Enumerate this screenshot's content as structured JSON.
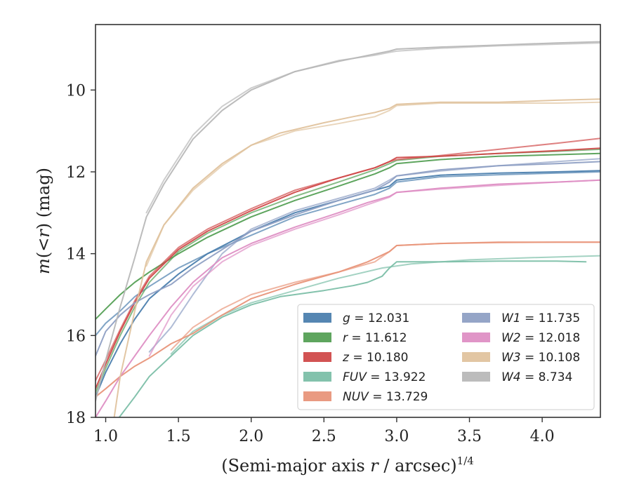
{
  "chart_data": {
    "type": "line",
    "xlabel_text": "(Semi-major axis ",
    "xlabel_var": "r",
    "xlabel_text2": " / arcsec)",
    "xlabel_sup": "1/4",
    "ylabel_m": "m",
    "ylabel_mid": "(<",
    "ylabel_r": "r",
    "ylabel_end": ") (mag)",
    "xlim": [
      0.93,
      4.4
    ],
    "ylim": [
      18,
      8.4
    ],
    "y_inverted": true,
    "x_ticks": [
      1.0,
      1.5,
      2.0,
      2.5,
      3.0,
      3.5,
      4.0
    ],
    "x_tick_labels": [
      "1.0",
      "1.5",
      "2.0",
      "2.5",
      "3.0",
      "3.5",
      "4.0"
    ],
    "y_ticks": [
      10,
      12,
      14,
      16,
      18
    ],
    "y_tick_labels": [
      "10",
      "12",
      "14",
      "16",
      "18"
    ],
    "grid": false,
    "legend_position": "lower-right",
    "legend_columns": 2,
    "series": [
      {
        "band": "g",
        "value": "12.031",
        "color": "#4c7fae",
        "curves": [
          {
            "x": [
              0.93,
              1.0,
              1.1,
              1.2,
              1.3,
              1.5,
              1.7,
              2.0,
              2.3,
              2.6,
              2.85,
              2.95,
              3.0,
              3.3,
              3.7,
              4.1,
              4.4
            ],
            "y": [
              17.5,
              16.9,
              16.2,
              15.6,
              15.1,
              14.5,
              14.0,
              13.45,
              13.0,
              12.7,
              12.45,
              12.35,
              12.2,
              12.08,
              12.03,
              12.0,
              11.97
            ]
          },
          {
            "x": [
              0.93,
              1.0,
              1.1,
              1.2,
              1.3,
              1.5,
              1.7,
              2.0,
              2.3,
              2.6,
              2.85,
              2.95,
              3.0,
              3.3,
              3.7,
              4.1,
              4.4
            ],
            "y": [
              16.0,
              15.7,
              15.4,
              15.05,
              14.8,
              14.35,
              14.0,
              13.55,
              13.1,
              12.8,
              12.55,
              12.4,
              12.25,
              12.12,
              12.07,
              12.03,
              12.0
            ]
          }
        ]
      },
      {
        "band": "r",
        "value": "11.612",
        "color": "#55a055",
        "curves": [
          {
            "x": [
              0.93,
              1.0,
              1.1,
              1.2,
              1.3,
              1.5,
              1.7,
              2.0,
              2.3,
              2.6,
              2.85,
              2.95,
              3.0,
              3.3,
              3.7,
              4.1,
              4.4
            ],
            "y": [
              15.6,
              15.35,
              15.0,
              14.7,
              14.45,
              14.0,
              13.6,
              13.1,
              12.7,
              12.35,
              12.05,
              11.9,
              11.8,
              11.7,
              11.62,
              11.58,
              11.55
            ]
          },
          {
            "x": [
              0.93,
              1.0,
              1.1,
              1.2,
              1.3,
              1.5,
              1.7,
              2.0,
              2.3,
              2.6,
              2.85,
              2.95,
              3.0,
              3.3,
              3.7,
              4.1,
              4.4
            ],
            "y": [
              17.4,
              16.8,
              16.0,
              15.3,
              14.7,
              13.95,
              13.5,
              13.0,
              12.6,
              12.25,
              11.95,
              11.8,
              11.72,
              11.62,
              11.55,
              11.5,
              11.45
            ]
          }
        ]
      },
      {
        "band": "z",
        "value": "10.180",
        "color": "#d04a4a",
        "curves": [
          {
            "x": [
              0.93,
              1.0,
              1.1,
              1.2,
              1.3,
              1.5,
              1.7,
              2.0,
              2.3,
              2.6,
              2.85,
              2.95,
              3.0,
              3.3,
              3.7,
              4.1,
              4.4
            ],
            "y": [
              17.3,
              16.7,
              15.9,
              15.2,
              14.6,
              13.9,
              13.45,
              12.95,
              12.5,
              12.15,
              11.9,
              11.75,
              11.65,
              11.62,
              11.55,
              11.48,
              11.42
            ]
          },
          {
            "x": [
              0.93,
              1.0,
              1.1,
              1.2,
              1.3,
              1.5,
              1.7,
              2.0,
              2.3,
              2.6,
              2.85,
              2.95,
              3.0,
              3.3,
              3.7,
              4.1,
              4.4
            ],
            "y": [
              17.1,
              16.6,
              15.85,
              15.15,
              14.55,
              13.85,
              13.4,
              12.9,
              12.45,
              12.15,
              11.9,
              11.75,
              11.7,
              11.6,
              11.45,
              11.3,
              11.18
            ]
          }
        ]
      },
      {
        "band": "FUV",
        "value": "13.922",
        "color": "#7cbfa8",
        "curves": [
          {
            "x": [
              1.05,
              1.2,
              1.3,
              1.45,
              1.6,
              1.8,
              2.0,
              2.2,
              2.5,
              2.7,
              2.8,
              2.9,
              2.95,
              3.0,
              3.3,
              3.7,
              4.1,
              4.3
            ],
            "y": [
              18.2,
              17.5,
              17.0,
              16.5,
              16.0,
              15.55,
              15.25,
              15.05,
              14.9,
              14.78,
              14.7,
              14.55,
              14.35,
              14.2,
              14.2,
              14.18,
              14.18,
              14.2
            ]
          },
          {
            "x": [
              1.45,
              1.6,
              1.8,
              2.0,
              2.3,
              2.6,
              2.9,
              3.1,
              3.5,
              3.9,
              4.4
            ],
            "y": [
              16.45,
              15.9,
              15.5,
              15.2,
              14.9,
              14.6,
              14.35,
              14.25,
              14.15,
              14.1,
              14.05
            ]
          }
        ]
      },
      {
        "band": "NUV",
        "value": "13.729",
        "color": "#e8957a",
        "curves": [
          {
            "x": [
              0.93,
              1.0,
              1.1,
              1.2,
              1.3,
              1.45,
              1.6,
              1.8,
              2.0,
              2.3,
              2.6,
              2.8,
              2.95,
              3.0,
              3.3,
              3.7,
              4.1,
              4.4
            ],
            "y": [
              17.5,
              17.3,
              17.0,
              16.75,
              16.55,
              16.2,
              15.95,
              15.5,
              15.1,
              14.75,
              14.45,
              14.2,
              13.95,
              13.8,
              13.75,
              13.72,
              13.72,
              13.72
            ]
          },
          {
            "x": [
              1.45,
              1.6,
              1.8,
              2.0,
              2.3,
              2.6,
              2.85,
              2.95,
              3.0,
              3.3,
              3.7,
              4.1,
              4.4
            ],
            "y": [
              16.35,
              15.8,
              15.35,
              15.0,
              14.7,
              14.45,
              14.2,
              13.95,
              13.8,
              13.75,
              13.73,
              13.72,
              13.72
            ]
          }
        ]
      },
      {
        "band": "W1",
        "value": "11.735",
        "color": "#8fa0c4",
        "curves": [
          {
            "x": [
              0.93,
              1.0,
              1.1,
              1.2,
              1.3,
              1.45,
              1.6,
              1.8,
              2.0,
              2.3,
              2.6,
              2.85,
              2.95,
              3.0,
              3.3,
              3.7,
              4.1,
              4.4
            ],
            "y": [
              16.5,
              15.9,
              15.5,
              15.2,
              15.0,
              14.75,
              14.35,
              13.9,
              13.45,
              13.05,
              12.7,
              12.45,
              12.25,
              12.1,
              11.95,
              11.85,
              11.8,
              11.75
            ]
          },
          {
            "x": [
              1.3,
              1.45,
              1.6,
              1.8,
              2.0,
              2.3,
              2.6,
              2.85,
              2.95,
              3.0,
              3.3,
              3.7,
              4.1,
              4.4
            ],
            "y": [
              16.4,
              15.8,
              15.0,
              14.0,
              13.4,
              12.95,
              12.65,
              12.4,
              12.2,
              12.1,
              11.98,
              11.85,
              11.75,
              11.68
            ]
          }
        ]
      },
      {
        "band": "W2",
        "value": "12.018",
        "color": "#de8fc4",
        "curves": [
          {
            "x": [
              0.93,
              1.0,
              1.1,
              1.2,
              1.3,
              1.45,
              1.6,
              1.8,
              2.0,
              2.3,
              2.6,
              2.8,
              2.95,
              3.0,
              3.3,
              3.7,
              4.1,
              4.4
            ],
            "y": [
              18.0,
              17.6,
              17.0,
              16.5,
              16.0,
              15.3,
              14.7,
              14.1,
              13.75,
              13.35,
              13.0,
              12.75,
              12.6,
              12.5,
              12.4,
              12.3,
              12.25,
              12.2
            ]
          },
          {
            "x": [
              1.3,
              1.45,
              1.6,
              1.8,
              2.0,
              2.3,
              2.6,
              2.8,
              2.95,
              3.0,
              3.3,
              3.7,
              4.1,
              4.4
            ],
            "y": [
              16.5,
              15.5,
              14.8,
              14.2,
              13.8,
              13.4,
              13.05,
              12.8,
              12.62,
              12.5,
              12.42,
              12.33,
              12.25,
              12.2
            ]
          }
        ]
      },
      {
        "band": "W3",
        "value": "10.108",
        "color": "#e0c39e",
        "curves": [
          {
            "x": [
              1.05,
              1.1,
              1.2,
              1.28,
              1.4,
              1.6,
              1.8,
              2.0,
              2.2,
              2.5,
              2.7,
              2.85,
              2.95,
              3.0,
              3.3,
              3.7,
              4.1,
              4.4
            ],
            "y": [
              18.2,
              17.0,
              15.4,
              14.2,
              13.3,
              12.4,
              11.8,
              11.35,
              11.05,
              10.8,
              10.65,
              10.55,
              10.45,
              10.35,
              10.3,
              10.3,
              10.25,
              10.22
            ]
          },
          {
            "x": [
              1.28,
              1.4,
              1.6,
              1.8,
              2.0,
              2.3,
              2.6,
              2.85,
              2.95,
              3.0,
              3.3,
              3.7,
              4.1,
              4.4
            ],
            "y": [
              14.3,
              13.3,
              12.45,
              11.85,
              11.35,
              11.0,
              10.82,
              10.65,
              10.5,
              10.38,
              10.32,
              10.32,
              10.32,
              10.3
            ]
          }
        ]
      },
      {
        "band": "W4",
        "value": "8.734",
        "color": "#b8b8b8",
        "curves": [
          {
            "x": [
              0.93,
              1.0,
              1.1,
              1.2,
              1.28,
              1.4,
              1.6,
              1.8,
              2.0,
              2.3,
              2.6,
              2.85,
              2.95,
              3.0,
              3.3,
              3.7,
              4.1,
              4.4
            ],
            "y": [
              17.6,
              16.6,
              15.3,
              14.1,
              13.1,
              12.3,
              11.2,
              10.5,
              10.0,
              9.55,
              9.3,
              9.12,
              9.05,
              9.0,
              8.95,
              8.9,
              8.85,
              8.82
            ]
          },
          {
            "x": [
              1.28,
              1.4,
              1.6,
              1.8,
              2.0,
              2.3,
              2.6,
              2.85,
              2.95,
              3.0,
              3.3,
              3.7,
              4.1,
              4.4
            ],
            "y": [
              13.0,
              12.2,
              11.1,
              10.4,
              9.95,
              9.55,
              9.28,
              9.15,
              9.08,
              9.05,
              8.98,
              8.92,
              8.88,
              8.85
            ]
          }
        ]
      }
    ]
  }
}
